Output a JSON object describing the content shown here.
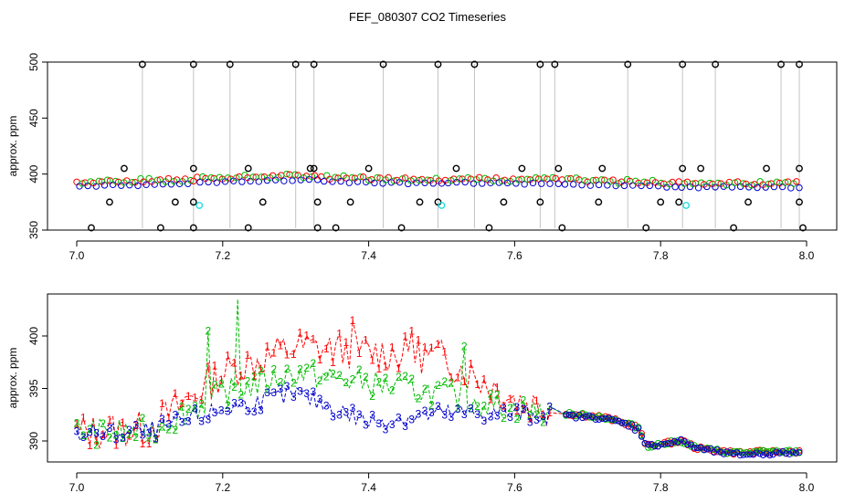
{
  "chart_data": {
    "title": "FEF_080307  CO2 Timeseries",
    "colors": {
      "series1": "#ff0000",
      "series2": "#00bb00",
      "series3": "#0000cc",
      "outlier": "#000000",
      "special": "#22dddd",
      "axis": "#000000",
      "drop_line": "#888888"
    },
    "panels": [
      {
        "id": "top",
        "type": "scatter",
        "ylabel": "approx. ppm",
        "xlim": [
          7.0,
          8.0
        ],
        "ylim": [
          350,
          500
        ],
        "xticks": [
          "7.0",
          "7.2",
          "7.4",
          "7.6",
          "7.8",
          "8.0"
        ],
        "yticks": [
          "350",
          "400",
          "450",
          "500"
        ],
        "baseline_segments": [
          {
            "x": [
              7.0,
              7.16
            ],
            "y": [
              390,
              392
            ]
          },
          {
            "x": [
              7.165,
              7.33
            ],
            "y": [
              393,
              396
            ]
          },
          {
            "x": [
              7.335,
              7.5
            ],
            "y": [
              394,
              392
            ]
          },
          {
            "x": [
              7.505,
              7.66
            ],
            "y": [
              393,
              392
            ]
          },
          {
            "x": [
              7.665,
              7.82
            ],
            "y": [
              392,
              389
            ]
          },
          {
            "x": [
              7.825,
              7.99
            ],
            "y": [
              389,
              389
            ]
          }
        ],
        "outliers_high": [
          7.09,
          7.16,
          7.21,
          7.3,
          7.325,
          7.42,
          7.495,
          7.545,
          7.635,
          7.655,
          7.755,
          7.83,
          7.875,
          7.965,
          7.99
        ],
        "outliers_405": [
          7.065,
          7.16,
          7.235,
          7.32,
          7.325,
          7.4,
          7.52,
          7.61,
          7.66,
          7.72,
          7.83,
          7.855,
          7.945,
          7.99
        ],
        "outliers_375": [
          7.045,
          7.135,
          7.16,
          7.255,
          7.33,
          7.375,
          7.47,
          7.495,
          7.585,
          7.635,
          7.715,
          7.8,
          7.825,
          7.92,
          7.99
        ],
        "outliers_352": [
          7.02,
          7.115,
          7.16,
          7.235,
          7.33,
          7.355,
          7.445,
          7.565,
          7.665,
          7.78,
          7.9,
          7.995
        ],
        "special_points": [
          {
            "x": 7.168,
            "y": 372
          },
          {
            "x": 7.5,
            "y": 372
          },
          {
            "x": 7.835,
            "y": 372
          }
        ]
      },
      {
        "id": "bottom",
        "type": "line",
        "ylabel": "approx. ppm",
        "xlim": [
          7.0,
          8.0
        ],
        "ylim": [
          388,
          404
        ],
        "xticks": [
          "7.0",
          "7.2",
          "7.4",
          "7.6",
          "7.8",
          "8.0"
        ],
        "yticks": [
          "390",
          "395",
          "400"
        ],
        "series": [
          {
            "name": "1",
            "x": [
              7.0,
              7.1,
              7.2,
              7.3,
              7.4,
              7.5,
              7.6,
              7.67,
              7.72,
              7.77,
              7.78,
              7.83,
              7.85,
              7.9,
              7.99
            ],
            "y": [
              390.8,
              391.2,
              396.5,
              399.0,
              398.5,
              398.0,
              394.0,
              392.6,
              392.3,
              391.3,
              389.5,
              390.0,
              389.3,
              388.9,
              389.0
            ]
          },
          {
            "name": "2",
            "x": [
              7.0,
              7.1,
              7.2,
              7.3,
              7.4,
              7.5,
              7.6,
              7.67,
              7.72,
              7.77,
              7.78,
              7.83,
              7.85,
              7.9,
              7.99
            ],
            "y": [
              390.8,
              391.0,
              394.5,
              396.5,
              395.5,
              394.5,
              393.0,
              392.6,
              392.3,
              391.3,
              389.5,
              390.0,
              389.3,
              388.9,
              389.0
            ]
          },
          {
            "name": "3",
            "x": [
              7.0,
              7.1,
              7.2,
              7.3,
              7.4,
              7.5,
              7.6,
              7.67,
              7.72,
              7.77,
              7.78,
              7.83,
              7.85,
              7.9,
              7.99
            ],
            "y": [
              390.6,
              390.9,
              393.0,
              394.5,
              391.8,
              392.6,
              392.6,
              392.4,
              392.2,
              391.3,
              389.5,
              390.0,
              389.3,
              388.7,
              388.9
            ]
          }
        ],
        "peaks_series2": [
          {
            "x": 7.18,
            "y": 400.5
          },
          {
            "x": 7.22,
            "y": 403.5
          },
          {
            "x": 7.53,
            "y": 399.0
          }
        ],
        "peaks_series1": [
          {
            "x": 7.38,
            "y": 401.5
          },
          {
            "x": 7.46,
            "y": 400.5
          }
        ],
        "dip_series3": {
          "x": 7.765,
          "y": 391.0
        }
      }
    ]
  }
}
